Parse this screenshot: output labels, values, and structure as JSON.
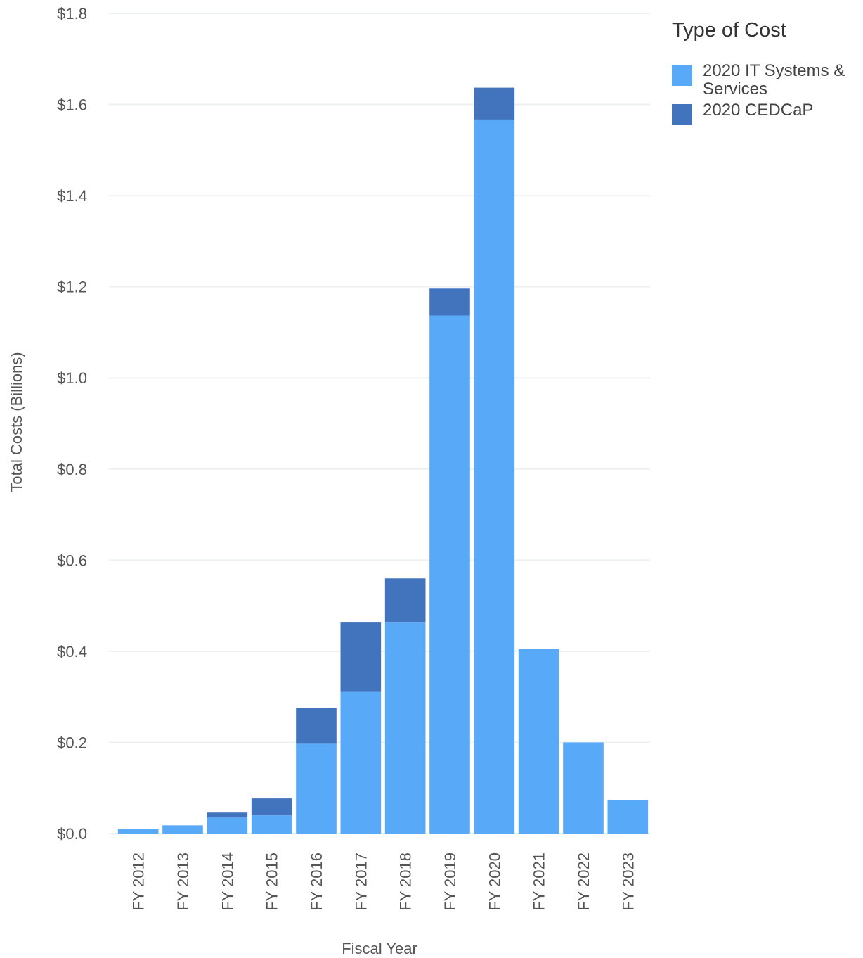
{
  "chart_data": {
    "type": "bar",
    "stacked": true,
    "title": "",
    "xlabel": "Fiscal Year",
    "ylabel": "Total Costs (Billions)",
    "ylim": [
      0,
      1.8
    ],
    "yticks": [
      "$0.0",
      "$0.2",
      "$0.4",
      "$0.6",
      "$0.8",
      "$1.0",
      "$1.2",
      "$1.4",
      "$1.6",
      "$1.8"
    ],
    "ytick_values": [
      0,
      0.2,
      0.4,
      0.6,
      0.8,
      1.0,
      1.2,
      1.4,
      1.6,
      1.8
    ],
    "grid": "horizontal",
    "legend_position": "right",
    "categories": [
      "FY 2012",
      "FY 2013",
      "FY 2014",
      "FY 2015",
      "FY 2016",
      "FY 2017",
      "FY 2018",
      "FY 2019",
      "FY 2020",
      "FY 2021",
      "FY 2022",
      "FY 2023"
    ],
    "series": [
      {
        "name": "2020 IT Systems & Services",
        "color": "#59a9f9",
        "values": [
          0.01,
          0.018,
          0.035,
          0.04,
          0.197,
          0.311,
          0.463,
          1.137,
          1.567,
          0.405,
          0.2,
          0.074
        ]
      },
      {
        "name": "2020 CEDCaP",
        "color": "#4174bd",
        "values": [
          0.0,
          0.0,
          0.011,
          0.037,
          0.079,
          0.152,
          0.097,
          0.059,
          0.07,
          0.0,
          0.0,
          0.0
        ]
      }
    ],
    "legend_title": "Type of Cost",
    "legend_lines": [
      [
        "2020 IT Systems &",
        "Services"
      ],
      [
        "2020 CEDCaP"
      ]
    ]
  }
}
